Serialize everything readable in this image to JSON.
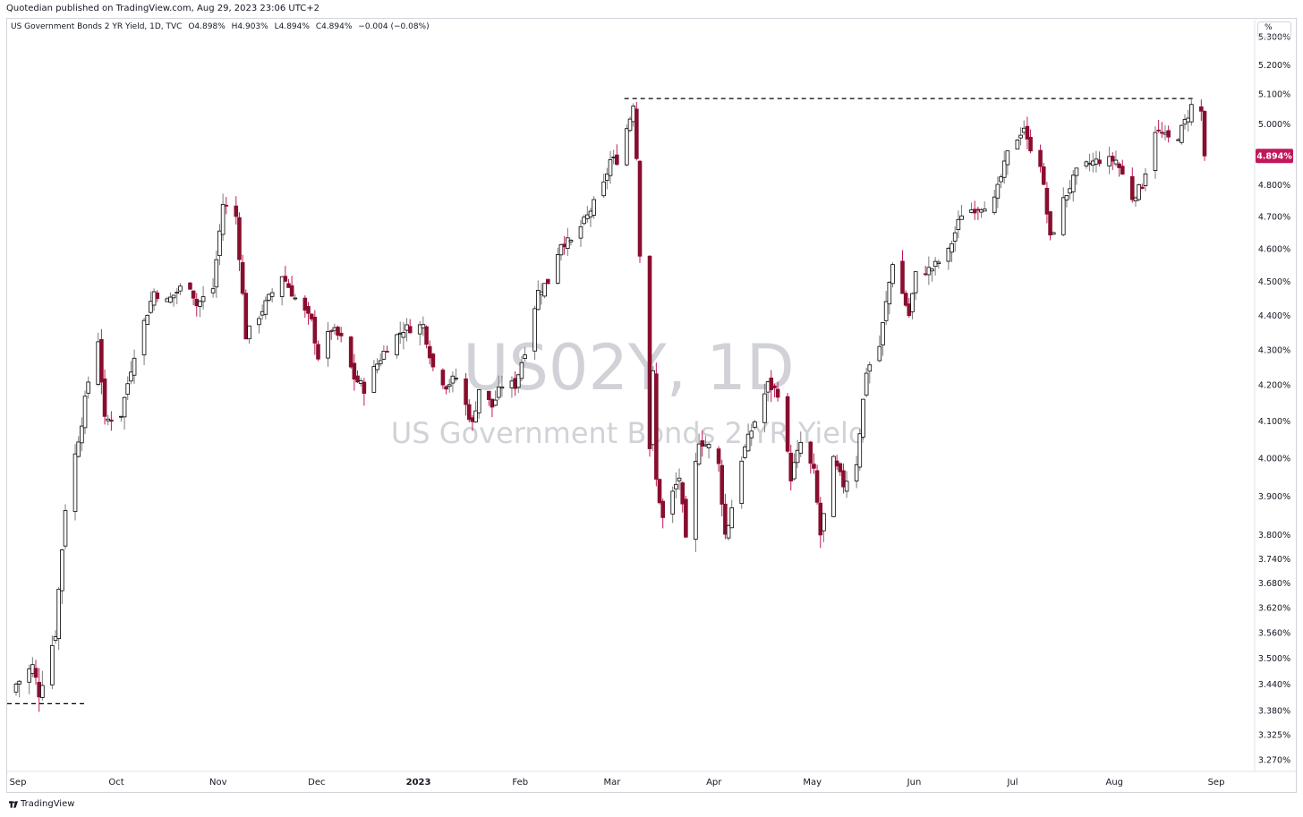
{
  "header": {
    "published": "Quotedian published on TradingView.com, Aug 29, 2023 23:06 UTC+2"
  },
  "legend": {
    "name": "US Government Bonds 2 YR Yield, 1D, TVC",
    "open": "O4.898%",
    "high": "H4.903%",
    "low": "L4.894%",
    "close": "C4.894%",
    "change": "−0.004 (−0.08%)"
  },
  "watermark": {
    "symbol": "US02Y, 1D",
    "description": "US Government Bonds 2 YR Yield"
  },
  "scale_button": "%",
  "brand": "TradingView",
  "colors": {
    "up_body": "#ffffff",
    "up_border": "#000000",
    "down_body": "#880e2e",
    "down_wick": "#c2185b",
    "up_wick": "#7a7a7a",
    "last_price_bg": "#c2185b",
    "grid": "#f0f3fa"
  },
  "chart_data": {
    "type": "candlestick",
    "title": "US Government Bonds 2 YR Yield",
    "interval": "1D",
    "exchange": "TVC",
    "y_scale": "log",
    "ylim": [
      3.245,
      5.36
    ],
    "x_range": [
      "2022-09-01",
      "2023-09-01"
    ],
    "x_ticks": [
      {
        "label": "Sep",
        "date": "2022-09-01",
        "bold": false
      },
      {
        "label": "Oct",
        "date": "2022-10-01",
        "bold": false
      },
      {
        "label": "Nov",
        "date": "2022-11-01",
        "bold": false
      },
      {
        "label": "Dec",
        "date": "2022-12-01",
        "bold": false
      },
      {
        "label": "2023",
        "date": "2023-01-01",
        "bold": true
      },
      {
        "label": "Feb",
        "date": "2023-02-01",
        "bold": false
      },
      {
        "label": "Mar",
        "date": "2023-03-01",
        "bold": false
      },
      {
        "label": "Apr",
        "date": "2023-04-01",
        "bold": false
      },
      {
        "label": "May",
        "date": "2023-05-01",
        "bold": false
      },
      {
        "label": "Jun",
        "date": "2023-06-01",
        "bold": false
      },
      {
        "label": "Jul",
        "date": "2023-07-01",
        "bold": false
      },
      {
        "label": "Aug",
        "date": "2023-08-01",
        "bold": false
      },
      {
        "label": "Sep",
        "date": "2023-09-01",
        "bold": false
      }
    ],
    "y_ticks": [
      {
        "value": 5.3,
        "label": "5.300%"
      },
      {
        "value": 5.2,
        "label": "5.200%"
      },
      {
        "value": 5.1,
        "label": "5.100%"
      },
      {
        "value": 5.0,
        "label": "5.000%"
      },
      {
        "value": 4.8,
        "label": "4.800%"
      },
      {
        "value": 4.7,
        "label": "4.700%"
      },
      {
        "value": 4.6,
        "label": "4.600%"
      },
      {
        "value": 4.5,
        "label": "4.500%"
      },
      {
        "value": 4.4,
        "label": "4.400%"
      },
      {
        "value": 4.3,
        "label": "4.300%"
      },
      {
        "value": 4.2,
        "label": "4.200%"
      },
      {
        "value": 4.1,
        "label": "4.100%"
      },
      {
        "value": 4.0,
        "label": "4.000%"
      },
      {
        "value": 3.9,
        "label": "3.900%"
      },
      {
        "value": 3.8,
        "label": "3.800%"
      },
      {
        "value": 3.74,
        "label": "3.740%"
      },
      {
        "value": 3.68,
        "label": "3.680%"
      },
      {
        "value": 3.62,
        "label": "3.620%"
      },
      {
        "value": 3.56,
        "label": "3.560%"
      },
      {
        "value": 3.5,
        "label": "3.500%"
      },
      {
        "value": 3.44,
        "label": "3.440%"
      },
      {
        "value": 3.38,
        "label": "3.380%"
      },
      {
        "value": 3.325,
        "label": "3.325%"
      },
      {
        "value": 3.27,
        "label": "3.270%"
      }
    ],
    "last_price": {
      "value": 4.894,
      "label": "4.894%"
    },
    "horizontal_lines": [
      {
        "from": "2022-09-01",
        "to": "2022-09-22",
        "value": 3.395,
        "style": "dashed"
      },
      {
        "from": "2023-03-08",
        "to": "2023-08-25",
        "value": 5.085,
        "style": "dashed"
      }
    ],
    "anchors": [
      [
        "2022-09-01",
        3.44
      ],
      [
        "2022-09-06",
        3.48
      ],
      [
        "2022-09-08",
        3.42
      ],
      [
        "2022-09-13",
        3.56
      ],
      [
        "2022-09-16",
        3.87
      ],
      [
        "2022-09-21",
        4.1
      ],
      [
        "2022-09-23",
        4.21
      ],
      [
        "2022-09-26",
        4.33
      ],
      [
        "2022-09-28",
        4.1
      ],
      [
        "2022-10-03",
        4.12
      ],
      [
        "2022-10-07",
        4.29
      ],
      [
        "2022-10-13",
        4.47
      ],
      [
        "2022-10-17",
        4.44
      ],
      [
        "2022-10-21",
        4.48
      ],
      [
        "2022-10-24",
        4.49
      ],
      [
        "2022-10-26",
        4.43
      ],
      [
        "2022-10-31",
        4.48
      ],
      [
        "2022-11-03",
        4.74
      ],
      [
        "2022-11-07",
        4.7
      ],
      [
        "2022-11-10",
        4.34
      ],
      [
        "2022-11-14",
        4.4
      ],
      [
        "2022-11-17",
        4.45
      ],
      [
        "2022-11-21",
        4.52
      ],
      [
        "2022-11-25",
        4.45
      ],
      [
        "2022-11-30",
        4.38
      ],
      [
        "2022-12-02",
        4.28
      ],
      [
        "2022-12-06",
        4.36
      ],
      [
        "2022-12-09",
        4.33
      ],
      [
        "2022-12-13",
        4.22
      ],
      [
        "2022-12-16",
        4.19
      ],
      [
        "2022-12-20",
        4.26
      ],
      [
        "2022-12-23",
        4.31
      ],
      [
        "2022-12-28",
        4.36
      ],
      [
        "2023-01-03",
        4.37
      ],
      [
        "2023-01-06",
        4.25
      ],
      [
        "2023-01-10",
        4.2
      ],
      [
        "2023-01-13",
        4.22
      ],
      [
        "2023-01-18",
        4.09
      ],
      [
        "2023-01-20",
        4.19
      ],
      [
        "2023-01-24",
        4.14
      ],
      [
        "2023-01-27",
        4.2
      ],
      [
        "2023-01-31",
        4.2
      ],
      [
        "2023-02-03",
        4.3
      ],
      [
        "2023-02-07",
        4.47
      ],
      [
        "2023-02-10",
        4.5
      ],
      [
        "2023-02-14",
        4.62
      ],
      [
        "2023-02-17",
        4.62
      ],
      [
        "2023-02-22",
        4.7
      ],
      [
        "2023-02-27",
        4.8
      ],
      [
        "2023-03-01",
        4.88
      ],
      [
        "2023-03-03",
        4.88
      ],
      [
        "2023-03-07",
        5.02
      ],
      [
        "2023-03-08",
        5.07
      ],
      [
        "2023-03-09",
        4.89
      ],
      [
        "2023-03-10",
        4.59
      ],
      [
        "2023-03-13",
        4.03
      ],
      [
        "2023-03-14",
        4.23
      ],
      [
        "2023-03-15",
        3.94
      ],
      [
        "2023-03-17",
        3.84
      ],
      [
        "2023-03-22",
        3.95
      ],
      [
        "2023-03-24",
        3.78
      ],
      [
        "2023-03-28",
        4.05
      ],
      [
        "2023-03-31",
        4.03
      ],
      [
        "2023-04-03",
        3.98
      ],
      [
        "2023-04-05",
        3.8
      ],
      [
        "2023-04-06",
        3.83
      ],
      [
        "2023-04-10",
        4.0
      ],
      [
        "2023-04-14",
        4.1
      ],
      [
        "2023-04-18",
        4.2
      ],
      [
        "2023-04-21",
        4.18
      ],
      [
        "2023-04-25",
        3.95
      ],
      [
        "2023-04-28",
        4.04
      ],
      [
        "2023-05-02",
        3.96
      ],
      [
        "2023-05-04",
        3.8
      ],
      [
        "2023-05-08",
        3.99
      ],
      [
        "2023-05-11",
        3.93
      ],
      [
        "2023-05-15",
        3.99
      ],
      [
        "2023-05-18",
        4.24
      ],
      [
        "2023-05-22",
        4.31
      ],
      [
        "2023-05-26",
        4.56
      ],
      [
        "2023-05-31",
        4.4
      ],
      [
        "2023-06-02",
        4.52
      ],
      [
        "2023-06-07",
        4.54
      ],
      [
        "2023-06-12",
        4.59
      ],
      [
        "2023-06-16",
        4.71
      ],
      [
        "2023-06-21",
        4.73
      ],
      [
        "2023-06-26",
        4.75
      ],
      [
        "2023-06-30",
        4.9
      ],
      [
        "2023-07-05",
        4.99
      ],
      [
        "2023-07-06",
        4.94
      ],
      [
        "2023-07-10",
        4.87
      ],
      [
        "2023-07-13",
        4.63
      ],
      [
        "2023-07-17",
        4.75
      ],
      [
        "2023-07-21",
        4.84
      ],
      [
        "2023-07-25",
        4.87
      ],
      [
        "2023-07-28",
        4.88
      ],
      [
        "2023-08-02",
        4.88
      ],
      [
        "2023-08-07",
        4.76
      ],
      [
        "2023-08-10",
        4.8
      ],
      [
        "2023-08-14",
        4.98
      ],
      [
        "2023-08-18",
        4.95
      ],
      [
        "2023-08-21",
        4.96
      ],
      [
        "2023-08-24",
        5.03
      ],
      [
        "2023-08-25",
        5.06
      ],
      [
        "2023-08-28",
        5.04
      ],
      [
        "2023-08-29",
        4.894
      ]
    ]
  }
}
